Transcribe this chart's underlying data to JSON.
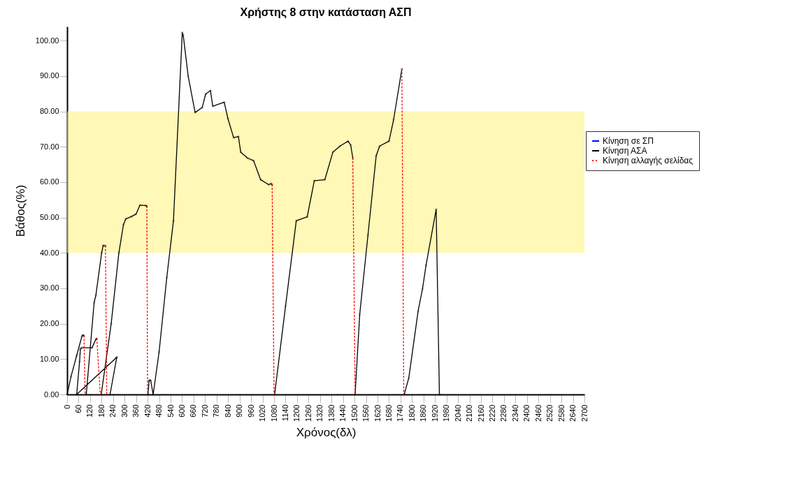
{
  "chart_data": {
    "type": "line",
    "title": "Χρήστης 8 στην κατάσταση ΑΣΠ",
    "xlabel": "Χρόνος(δλ)",
    "ylabel": "Βάθος(%)",
    "xlim": [
      0,
      2700
    ],
    "xticks": [
      0,
      60,
      120,
      180,
      240,
      300,
      360,
      420,
      480,
      540,
      600,
      660,
      720,
      780,
      840,
      900,
      960,
      1020,
      1080,
      1140,
      1200,
      1260,
      1320,
      1380,
      1440,
      1500,
      1560,
      1620,
      1680,
      1740,
      1800,
      1860,
      1920,
      1980,
      2040,
      2100,
      2160,
      2220,
      2280,
      2340,
      2400,
      2460,
      2520,
      2580,
      2640,
      2700
    ],
    "ylim": [
      0,
      104
    ],
    "yticks": [
      {
        "value": 0,
        "label": "0.00"
      },
      {
        "value": 10,
        "label": "10.00"
      },
      {
        "value": 20,
        "label": "20.00"
      },
      {
        "value": 30,
        "label": "30.00"
      },
      {
        "value": 40,
        "label": "40.00"
      },
      {
        "value": 50,
        "label": "50.00"
      },
      {
        "value": 60,
        "label": "60.00"
      },
      {
        "value": 70,
        "label": "70.00"
      },
      {
        "value": 80,
        "label": "80.00"
      },
      {
        "value": 90,
        "label": "90.00"
      },
      {
        "value": 100,
        "label": "100.00"
      }
    ],
    "grid": false,
    "legend": "right",
    "bands": [
      {
        "axis": "y",
        "from": 40,
        "to": 80,
        "color": "#fff27a"
      }
    ],
    "series": [
      {
        "name": "Κίνηση σε ΣΠ",
        "color": "#0000ff",
        "line_style": "solid"
      },
      {
        "name": "Κίνηση ΑΣΑ",
        "color": "#000000",
        "line_style": "solid",
        "marker": "circle",
        "x": [
          0,
          20,
          50,
          77,
          82,
          88,
          null,
          259,
          50,
          65,
          69,
          75,
          130,
          150,
          155,
          null,
          100,
          141,
          150,
          180,
          188,
          200,
          null,
          178,
          230,
          270,
          294,
          306,
          336,
          360,
          380,
          410,
          416,
          null,
          224,
          259,
          null,
          422,
          428,
          436,
          449,
          480,
          520,
          555,
          601,
          606,
          632,
          668,
          705,
          723,
          748,
          760,
          820,
          839,
          869,
          894,
          906,
          942,
          973,
          1010,
          1052,
          1064,
          1070,
          null,
          1083,
          1140,
          1196,
          1253,
          1290,
          1345,
          1387,
          1424,
          1466,
          1480,
          1491,
          null,
          1503,
          1527,
          1570,
          1613,
          1631,
          1680,
          1704,
          1747,
          null,
          1759,
          1783,
          1832,
          1855,
          1873,
          1926,
          1943
        ],
        "values": [
          0,
          5,
          11,
          16.4,
          16.8,
          16.6,
          null,
          10.5,
          0,
          9.3,
          12.8,
          13.2,
          13.2,
          15.6,
          15.8,
          null,
          0,
          26,
          28,
          40,
          42.1,
          42,
          null,
          0,
          20,
          40,
          48,
          49.6,
          50.3,
          51,
          53.5,
          53.4,
          53.2,
          null,
          0,
          10.5,
          null,
          0,
          4,
          4,
          0,
          12,
          33,
          49.1,
          102.3,
          101.5,
          89.9,
          79.7,
          81.1,
          84.9,
          85.9,
          81.5,
          82.6,
          78,
          72.6,
          72.9,
          68.5,
          66.8,
          66.1,
          60.7,
          59.3,
          59.6,
          59.3,
          null,
          0,
          25,
          49.1,
          50.2,
          60.4,
          60.7,
          68.5,
          70.2,
          71.6,
          70.5,
          66.8,
          null,
          0,
          22.6,
          45,
          67.5,
          70.2,
          71.6,
          77.7,
          92,
          null,
          0,
          4.6,
          23.6,
          29.9,
          36.5,
          52.3,
          0
        ]
      },
      {
        "name": "Κίνηση αλλαγής σελίδας",
        "color": "#ff0000",
        "line_style": "dotted",
        "x": [
          88,
          94,
          null,
          155,
          173,
          null,
          200,
          207,
          null,
          416,
          420,
          null,
          1070,
          1080,
          null,
          1491,
          1503,
          null,
          1747,
          1757
        ],
        "values": [
          16.6,
          0,
          null,
          15.8,
          0,
          null,
          42,
          0,
          null,
          53.2,
          0,
          null,
          59.3,
          0,
          null,
          66.8,
          0,
          null,
          92,
          0
        ]
      }
    ]
  }
}
